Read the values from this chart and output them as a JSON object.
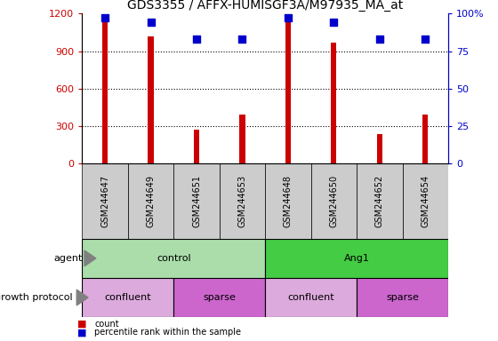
{
  "title": "GDS3355 / AFFX-HUMISGF3A/M97935_MA_at",
  "samples": [
    "GSM244647",
    "GSM244649",
    "GSM244651",
    "GSM244653",
    "GSM244648",
    "GSM244650",
    "GSM244652",
    "GSM244654"
  ],
  "counts": [
    1150,
    1020,
    270,
    390,
    1160,
    970,
    240,
    390
  ],
  "percentiles": [
    97,
    94,
    83,
    83,
    97,
    94,
    83,
    83
  ],
  "ylim_left": [
    0,
    1200
  ],
  "ylim_right": [
    0,
    100
  ],
  "yticks_left": [
    0,
    300,
    600,
    900,
    1200
  ],
  "yticks_right": [
    0,
    25,
    50,
    75,
    100
  ],
  "bar_color": "#cc0000",
  "dot_color": "#0000cc",
  "agent_groups": [
    {
      "label": "control",
      "start": 0,
      "end": 4,
      "color": "#aaddaa"
    },
    {
      "label": "Ang1",
      "start": 4,
      "end": 8,
      "color": "#44cc44"
    }
  ],
  "growth_groups": [
    {
      "label": "confluent",
      "start": 0,
      "end": 2,
      "color": "#ddaadd"
    },
    {
      "label": "sparse",
      "start": 2,
      "end": 4,
      "color": "#cc66cc"
    },
    {
      "label": "confluent",
      "start": 4,
      "end": 6,
      "color": "#ddaadd"
    },
    {
      "label": "sparse",
      "start": 6,
      "end": 8,
      "color": "#cc66cc"
    }
  ],
  "label_agent": "agent",
  "label_growth": "growth protocol",
  "legend_count": "count",
  "legend_percentile": "percentile rank within the sample",
  "bg_sample_color": "#cccccc",
  "title_fontsize": 10,
  "axis_label_color_left": "#cc0000",
  "axis_label_color_right": "#0000cc",
  "bar_width": 0.12,
  "dot_size": 30
}
